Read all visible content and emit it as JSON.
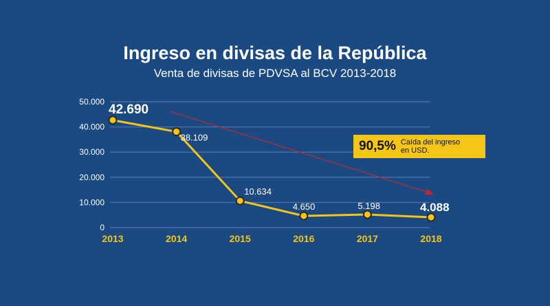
{
  "chart_data": {
    "type": "line",
    "title": "Ingreso en divisas de la República",
    "subtitle": "Venta de divisas de PDVSA al BCV 2013-2018",
    "x": [
      "2013",
      "2014",
      "2015",
      "2016",
      "2017",
      "2018"
    ],
    "values": [
      42690,
      38109,
      10634,
      4650,
      5198,
      4088
    ],
    "data_labels": [
      "42.690",
      "38.109",
      "10.634",
      "4.650",
      "5.198",
      "4.088"
    ],
    "y_ticks": [
      0,
      10000,
      20000,
      30000,
      40000,
      50000
    ],
    "y_tick_labels": [
      "0",
      "10.000",
      "20.000",
      "30.000",
      "40.000",
      "50.000"
    ],
    "ylim": [
      0,
      50000
    ],
    "grid": true,
    "annotation": {
      "value": "90,5%",
      "text": "Caída del ingreso en USD.",
      "trend_arrow": "down"
    },
    "colors": {
      "background": "#1b4a82",
      "line": "#f5c518",
      "arrow": "#c0282d",
      "grid": "#5b7fb0",
      "text": "#ffffff",
      "x_labels": "#f5c518"
    }
  }
}
